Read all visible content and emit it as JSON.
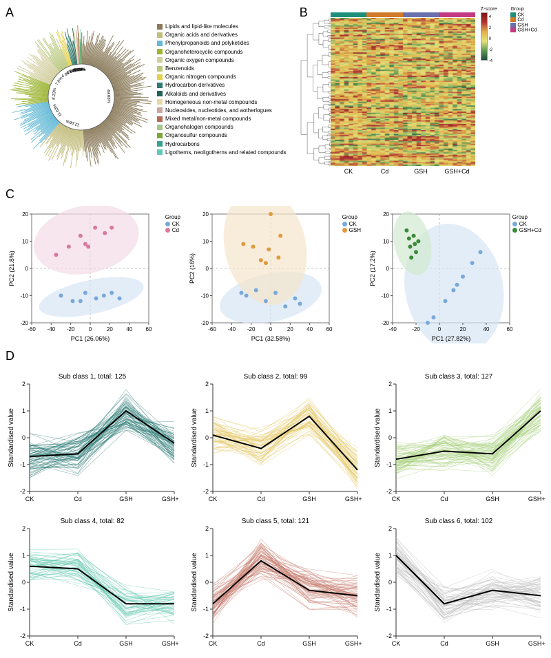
{
  "panels": {
    "A": "A",
    "B": "B",
    "C": "C",
    "D": "D"
  },
  "panelA": {
    "categories": [
      {
        "label": "Lipids and lipid-like molecules",
        "color": "#8a7a5a",
        "pct": 49.08
      },
      {
        "label": "Organic acids and derivatives",
        "color": "#c3bd7e",
        "pct": 12.06
      },
      {
        "label": "Phenylpropanoids and polyketides",
        "color": "#63b9d6",
        "pct": 11.63
      },
      {
        "label": "Organoheterocyclic compounds",
        "color": "#9db535",
        "pct": 8.23
      },
      {
        "label": "Organic oxygen compounds",
        "color": "#d2cf9f",
        "pct": 7.8
      },
      {
        "label": "Benzenoids",
        "color": "#b9c77d",
        "pct": 4.96
      },
      {
        "label": "Organic nitrogen compounds",
        "color": "#e3d04e",
        "pct": 1.84
      },
      {
        "label": "Hydrocarbon derivatives",
        "color": "#2e7a6f",
        "pct": 1.28
      },
      {
        "label": "Alkaloids and derivatives",
        "color": "#1f6357",
        "pct": 1.28
      },
      {
        "label": "Homogeneous non-metal compounds",
        "color": "#e6d9a7",
        "pct": 0.57
      },
      {
        "label": "Nucleosides, nucleotides, and aotherlogues",
        "color": "#c9a7a0",
        "pct": 0.43
      },
      {
        "label": "Mixed metal/non-metal compounds",
        "color": "#b86b54",
        "pct": 0.14
      },
      {
        "label": "Organohalogen compounds",
        "color": "#a9c48d",
        "pct": 0.3
      },
      {
        "label": "Organosulfur compounds",
        "color": "#7aa63a",
        "pct": 0.2
      },
      {
        "label": "Hydrocarbons",
        "color": "#3aa094",
        "pct": 0.1
      },
      {
        "label": "Ligotherns, neoligotherns and related compounds",
        "color": "#5fc9b6",
        "pct": 0.1
      }
    ],
    "shown_pct_labels": [
      "49.08%",
      "12.06%",
      "11.63%",
      "8.23%",
      "7.8%",
      "4.96%",
      "1.84%",
      "1.28%",
      "1.28%",
      "0.57%",
      "0.43%",
      "0.14%"
    ],
    "inner_radius": 48,
    "outer_radius_min": 60,
    "outer_radius_max": 105
  },
  "panelB": {
    "groups": [
      {
        "label": "CK",
        "color": "#1e8f7a"
      },
      {
        "label": "Cd",
        "color": "#d07a2a"
      },
      {
        "label": "GSH",
        "color": "#6a6fae"
      },
      {
        "label": "GSH+Cd",
        "color": "#c23b83"
      }
    ],
    "zscore": {
      "min": -4,
      "max": 4,
      "colors": [
        "#1a4d3a",
        "#5f9a54",
        "#e5e27a",
        "#e0b24a",
        "#b23434",
        "#7a1515"
      ]
    },
    "xlabels": [
      "CK",
      "Cd",
      "GSH",
      "GSH+Cd"
    ],
    "legend_title_z": "Z-score",
    "legend_title_g": "Group"
  },
  "panelC": {
    "plots": [
      {
        "xlabel": "PC1 (26.06%)",
        "ylabel": "PC2 (21.8%)",
        "xlim": [
          -60,
          60
        ],
        "ylim": [
          -20,
          20
        ],
        "xticks": [
          -60,
          -40,
          -20,
          0,
          20,
          40,
          60
        ],
        "yticks": [
          -20,
          -10,
          0,
          10,
          20
        ],
        "groups": [
          {
            "name": "CK",
            "color": "#7aa8d8",
            "ellipse_fill": "#d6e6f5",
            "points": [
              [
                -30,
                -10
              ],
              [
                -18,
                -12
              ],
              [
                -5,
                -9
              ],
              [
                6,
                -11
              ],
              [
                14,
                -10
              ],
              [
                22,
                -9
              ],
              [
                30,
                -11
              ],
              [
                -10,
                -12
              ]
            ]
          },
          {
            "name": "Cd",
            "color": "#d87a9f",
            "ellipse_fill": "#f3dbe6",
            "points": [
              [
                -35,
                5
              ],
              [
                -22,
                8
              ],
              [
                -10,
                12
              ],
              [
                -5,
                9
              ],
              [
                5,
                15
              ],
              [
                15,
                13
              ],
              [
                22,
                15
              ],
              [
                -2,
                8
              ]
            ]
          }
        ]
      },
      {
        "xlabel": "PC1 (32.58%)",
        "ylabel": "PC2 (16%)",
        "xlim": [
          -60,
          60
        ],
        "ylim": [
          -20,
          20
        ],
        "xticks": [
          -60,
          -40,
          -20,
          0,
          20,
          40,
          60
        ],
        "yticks": [
          -20,
          -10,
          0,
          10,
          20
        ],
        "groups": [
          {
            "name": "CK",
            "color": "#7aa8d8",
            "ellipse_fill": "#d6e6f5",
            "points": [
              [
                -25,
                -10
              ],
              [
                -15,
                -8
              ],
              [
                -5,
                -12
              ],
              [
                5,
                -9
              ],
              [
                15,
                -14
              ],
              [
                25,
                -11
              ],
              [
                30,
                -13
              ],
              [
                -30,
                -9
              ]
            ]
          },
          {
            "name": "GSH",
            "color": "#e09a3e",
            "ellipse_fill": "#f5e5cb",
            "points": [
              [
                -28,
                9
              ],
              [
                -18,
                8
              ],
              [
                -10,
                3
              ],
              [
                0,
                20
              ],
              [
                10,
                12
              ],
              [
                -5,
                2
              ],
              [
                -2,
                7
              ],
              [
                8,
                4
              ]
            ]
          }
        ]
      },
      {
        "xlabel": "PC1 (27.82%)",
        "ylabel": "PC2 (17.2%)",
        "xlim": [
          -40,
          60
        ],
        "ylim": [
          -20,
          20
        ],
        "xticks": [
          -40,
          -20,
          0,
          20,
          40,
          60
        ],
        "yticks": [
          -20,
          -10,
          0,
          10,
          20
        ],
        "groups": [
          {
            "name": "CK",
            "color": "#7aa8d8",
            "ellipse_fill": "#d6e6f5",
            "points": [
              [
                -5,
                -18
              ],
              [
                5,
                -12
              ],
              [
                12,
                -8
              ],
              [
                20,
                -3
              ],
              [
                28,
                2
              ],
              [
                35,
                6
              ],
              [
                -10,
                -20
              ],
              [
                15,
                -6
              ]
            ]
          },
          {
            "name": "GSH+Cd",
            "color": "#3a8a3a",
            "ellipse_fill": "#d3e9d0",
            "points": [
              [
                -28,
                14
              ],
              [
                -25,
                8
              ],
              [
                -22,
                12
              ],
              [
                -20,
                6
              ],
              [
                -18,
                10
              ],
              [
                -24,
                4
              ],
              [
                -26,
                11
              ],
              [
                -21,
                9
              ]
            ]
          }
        ]
      }
    ],
    "legend_title": "Group"
  },
  "panelD": {
    "xcats": [
      "CK",
      "Cd",
      "GSH",
      "GSH+Cd"
    ],
    "ylabel": "Standardised value",
    "ylim": [
      -2,
      2
    ],
    "yticks": [
      -2,
      -1,
      0,
      1,
      2
    ],
    "subclasses": [
      {
        "title": "Sub class 1, total: 125",
        "color": "#2a7a75",
        "centroid": [
          -0.7,
          -0.6,
          1.0,
          -0.2
        ],
        "n": 70
      },
      {
        "title": "Sub class 2, total: 99",
        "color": "#e3c761",
        "centroid": [
          0.1,
          -0.4,
          0.8,
          -1.2
        ],
        "n": 60
      },
      {
        "title": "Sub class 3, total: 127",
        "color": "#a6d07a",
        "centroid": [
          -0.8,
          -0.5,
          -0.6,
          1.0
        ],
        "n": 70
      },
      {
        "title": "Sub class 4, total: 82",
        "color": "#5ec7ab",
        "centroid": [
          0.6,
          0.5,
          -0.8,
          -0.8
        ],
        "n": 50
      },
      {
        "title": "Sub class 5, total: 121",
        "color": "#c47a6c",
        "centroid": [
          -0.8,
          0.8,
          -0.3,
          -0.5
        ],
        "n": 70
      },
      {
        "title": "Sub class 6, total: 102",
        "color": "#bcbcbc",
        "centroid": [
          1.0,
          -0.8,
          -0.3,
          -0.5
        ],
        "n": 60
      }
    ]
  }
}
